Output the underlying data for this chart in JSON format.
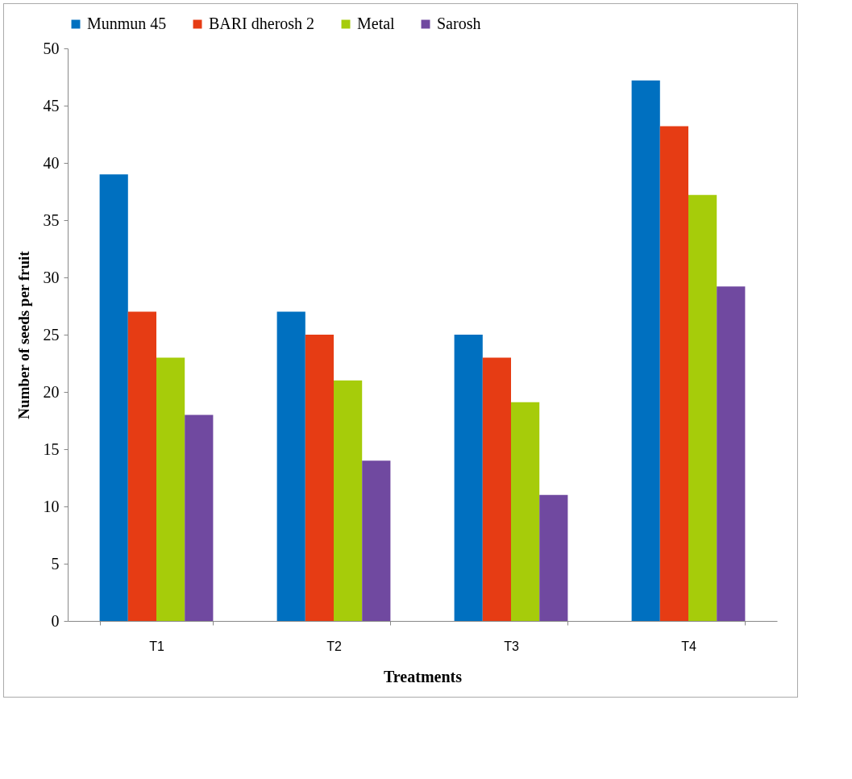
{
  "chart_data": {
    "type": "bar",
    "xlabel": "Treatments",
    "ylabel": "Number of seeds per fruit",
    "categories": [
      "T1",
      "T2",
      "T3",
      "T4"
    ],
    "series": [
      {
        "name": "Munmun 45",
        "color": "#0070c0",
        "values": [
          39,
          27,
          25,
          47.2
        ]
      },
      {
        "name": "BARI dherosh 2",
        "color": "#e63c14",
        "values": [
          27,
          25,
          23,
          43.2
        ]
      },
      {
        "name": "Metal",
        "color": "#a6cc0a",
        "values": [
          23,
          21,
          19.1,
          37.2
        ]
      },
      {
        "name": "Sarosh",
        "color": "#7049a0",
        "values": [
          18,
          14,
          11,
          29.2
        ]
      }
    ],
    "ylim": [
      0,
      50
    ],
    "yticks": [
      0,
      5,
      10,
      15,
      20,
      25,
      30,
      35,
      40,
      45,
      50
    ],
    "grid": false,
    "legend": "top"
  }
}
